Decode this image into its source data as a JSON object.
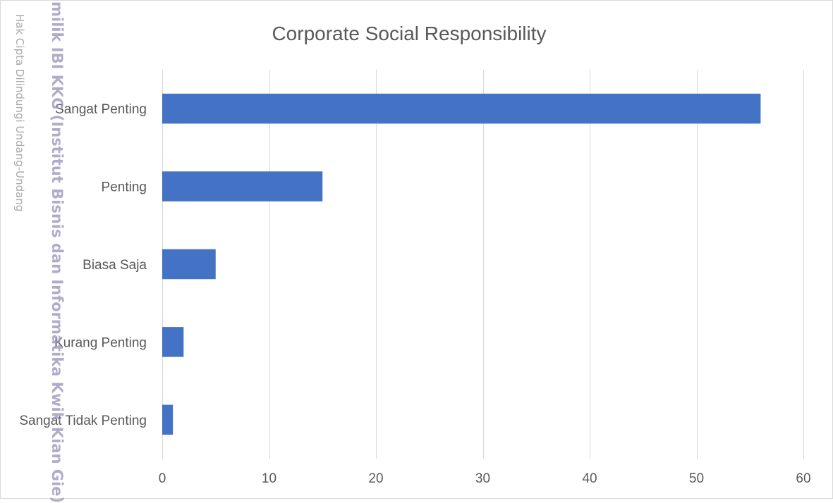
{
  "chart_data": {
    "type": "bar",
    "orientation": "horizontal",
    "title": "Corporate Social Responsibility",
    "categories": [
      "Sangat Penting",
      "Penting",
      "Biasa Saja",
      "Kurang Penting",
      "Sangat Tidak Penting"
    ],
    "values": [
      56,
      15,
      5,
      2,
      1
    ],
    "xlim": [
      0,
      60
    ],
    "xticks": [
      "0",
      "10",
      "20",
      "30",
      "40",
      "50",
      "60"
    ],
    "grid": true,
    "legend": "none",
    "bar_color": "#4472c4",
    "grid_color": "#d9d9d9",
    "text_color": "#595959"
  },
  "watermark": {
    "main": "Hak Cipta Dilindungi Undang-Undang",
    "owner": "milik IBI KKG (Institut Bisnis dan Informatika Kwik Kian Gie)"
  }
}
